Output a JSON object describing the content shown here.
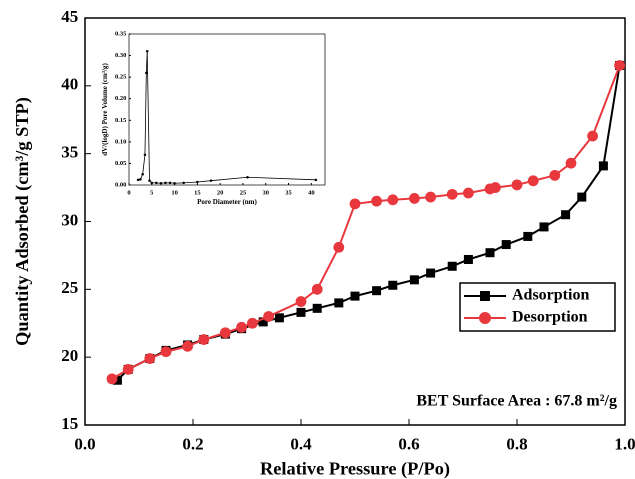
{
  "chart_data": [
    {
      "type": "line",
      "xlabel": "Relative Pressure (P/Po)",
      "ylabel": "Quantity Adsorbed (cm³/g STP)",
      "annotation": "BET Surface Area : 67.8 m²/g",
      "xlim": [
        0,
        1.0
      ],
      "ylim": [
        15,
        45
      ],
      "xticks": [
        {
          "value": 0,
          "label": "0.0"
        },
        {
          "value": 0.2,
          "label": "0.2"
        },
        {
          "value": 0.4,
          "label": "0.4"
        },
        {
          "value": 0.6,
          "label": "0.6"
        },
        {
          "value": 0.8,
          "label": "0.8"
        },
        {
          "value": 1.0,
          "label": "1.0"
        }
      ],
      "yticks": [
        15,
        20,
        25,
        30,
        35,
        40,
        45
      ],
      "legend": "right",
      "series": [
        {
          "name": "Adsorption",
          "color": "#000000",
          "marker": "square",
          "x": [
            0.06,
            0.08,
            0.12,
            0.15,
            0.19,
            0.22,
            0.26,
            0.29,
            0.33,
            0.36,
            0.4,
            0.43,
            0.47,
            0.5,
            0.54,
            0.57,
            0.61,
            0.64,
            0.68,
            0.71,
            0.75,
            0.78,
            0.82,
            0.85,
            0.89,
            0.92,
            0.96,
            0.99
          ],
          "values": [
            18.3,
            19.1,
            19.9,
            20.5,
            20.9,
            21.3,
            21.7,
            22.1,
            22.6,
            22.9,
            23.3,
            23.6,
            24.0,
            24.5,
            24.9,
            25.3,
            25.7,
            26.2,
            26.7,
            27.2,
            27.7,
            28.3,
            28.9,
            29.6,
            30.5,
            31.8,
            34.1,
            41.5
          ]
        },
        {
          "name": "Desorption",
          "color": "#e8383d",
          "marker": "circle",
          "x": [
            0.05,
            0.08,
            0.12,
            0.15,
            0.19,
            0.22,
            0.26,
            0.29,
            0.31,
            0.34,
            0.4,
            0.43,
            0.47,
            0.5,
            0.54,
            0.57,
            0.61,
            0.64,
            0.68,
            0.71,
            0.75,
            0.76,
            0.8,
            0.83,
            0.87,
            0.9,
            0.94,
            0.99
          ],
          "values": [
            18.4,
            19.1,
            19.9,
            20.4,
            20.8,
            21.3,
            21.8,
            22.2,
            22.5,
            23.0,
            24.1,
            25.0,
            28.1,
            31.3,
            31.5,
            31.6,
            31.7,
            31.8,
            32.0,
            32.1,
            32.4,
            32.5,
            32.7,
            33.0,
            33.4,
            34.3,
            36.3,
            41.5
          ]
        }
      ]
    },
    {
      "type": "line",
      "xlabel": "Pore Diameter (nm)",
      "ylabel": "dV/(logD)  Pore Volume (cm³/g)",
      "xlim": [
        0,
        43
      ],
      "ylim": [
        0,
        0.35
      ],
      "xticks": [
        0,
        5,
        10,
        15,
        20,
        25,
        30,
        35,
        40
      ],
      "yticks": [
        {
          "value": 0,
          "label": "0.00"
        },
        {
          "value": 0.05,
          "label": "0.05"
        },
        {
          "value": 0.1,
          "label": "0.10"
        },
        {
          "value": 0.15,
          "label": "0.15"
        },
        {
          "value": 0.2,
          "label": "0.20"
        },
        {
          "value": 0.25,
          "label": "0.25"
        },
        {
          "value": 0.3,
          "label": "0.30"
        },
        {
          "value": 0.35,
          "label": "0.35"
        }
      ],
      "series": [
        {
          "color": "#000000",
          "marker": "dot",
          "x": [
            2,
            2.5,
            3,
            3.5,
            3.8,
            4,
            4.5,
            5,
            6,
            7,
            8,
            9,
            10,
            12,
            15,
            18,
            26,
            41
          ],
          "values": [
            0.012,
            0.013,
            0.025,
            0.07,
            0.26,
            0.31,
            0.01,
            0.005,
            0.005,
            0.004,
            0.005,
            0.005,
            0.004,
            0.005,
            0.007,
            0.01,
            0.018,
            0.012
          ]
        }
      ]
    }
  ]
}
